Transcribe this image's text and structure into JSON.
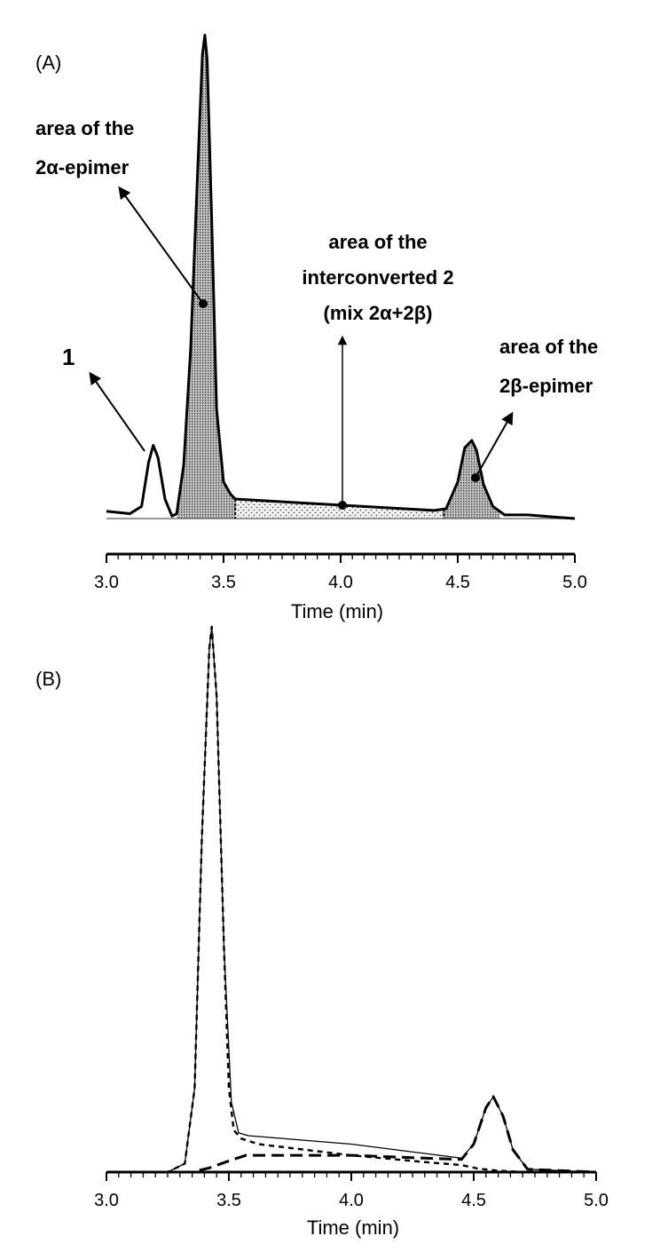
{
  "chart_data": [
    {
      "panel_label": "(A)",
      "type": "line",
      "xlabel": "Time (min)",
      "ylabel": "",
      "xlim": [
        3.0,
        5.0
      ],
      "xticks": [
        "3.0",
        "3.5",
        "4.0",
        "4.5",
        "5.0"
      ],
      "y_axis_shown": false,
      "grid": false,
      "series": [
        {
          "x": [
            3.0,
            3.05,
            3.1,
            3.15,
            3.18,
            3.2,
            3.22,
            3.25,
            3.28,
            3.3,
            3.33,
            3.36,
            3.39,
            3.41,
            3.42,
            3.43,
            3.45,
            3.47,
            3.5,
            3.53,
            3.55,
            3.8,
            4.0,
            4.2,
            4.4,
            4.45,
            4.5,
            4.53,
            4.56,
            4.58,
            4.61,
            4.65,
            4.7,
            4.8,
            5.0
          ],
          "y": [
            3,
            2.5,
            2,
            5,
            23,
            30,
            25,
            8,
            1,
            2,
            22,
            70,
            144,
            190,
            198,
            188,
            120,
            45,
            15,
            10,
            8,
            6.6,
            5.5,
            4.4,
            3.3,
            4,
            15,
            29,
            32,
            28,
            14,
            5,
            1.5,
            1.5,
            0
          ]
        }
      ],
      "shaded_regions": [
        {
          "x_start": 3.3,
          "x_end": 3.55,
          "fill": "dense-dots"
        },
        {
          "x_start": 3.55,
          "x_end": 4.44,
          "fill": "sparse-dots"
        },
        {
          "x_start": 4.44,
          "x_end": 4.68,
          "fill": "dense-dots"
        }
      ],
      "annotations": [
        {
          "lines": [
            "area of the",
            "2α-epimer"
          ],
          "x": 3.43,
          "y": 87
        },
        {
          "lines": [
            "area of the",
            "interconverted 2",
            "(mix 2α+2β)"
          ],
          "x": 4.03,
          "y": 4.8
        },
        {
          "lines": [
            "1"
          ],
          "x": 3.16,
          "y": 26
        },
        {
          "lines": [
            "area of the",
            "2β-epimer"
          ],
          "x": 4.58,
          "y": 16
        }
      ]
    },
    {
      "panel_label": "(B)",
      "type": "line",
      "xlabel": "Time (min)",
      "ylabel": "",
      "xlim": [
        3.0,
        5.0
      ],
      "xticks": [
        "3.0",
        "3.5",
        "4.0",
        "4.5",
        "5.0"
      ],
      "y_axis_shown": false,
      "grid": false,
      "series": [
        {
          "style": "solid-thin",
          "x": [
            3.0,
            3.25,
            3.32,
            3.36,
            3.39,
            3.42,
            3.43,
            3.45,
            3.48,
            3.51,
            3.54,
            3.58,
            4.0,
            4.45,
            4.5,
            4.55,
            4.58,
            4.62,
            4.66,
            4.72,
            5.0
          ],
          "y": [
            0,
            0,
            3,
            30,
            120,
            187,
            195,
            170,
            80,
            25,
            14,
            13,
            10,
            5,
            10,
            23,
            27,
            20,
            8,
            1,
            0
          ]
        },
        {
          "style": "short-dash",
          "x": [
            3.0,
            3.25,
            3.32,
            3.36,
            3.39,
            3.42,
            3.43,
            3.45,
            3.48,
            3.5,
            3.52,
            3.55,
            3.62,
            4.0,
            4.3,
            4.45,
            4.52,
            4.6,
            4.7,
            5.0
          ],
          "y": [
            0,
            0,
            3,
            30,
            120,
            187,
            195,
            170,
            80,
            30,
            15,
            12,
            10,
            6,
            3.6,
            2.5,
            1.2,
            0.5,
            0,
            0
          ]
        },
        {
          "style": "long-dash",
          "x": [
            3.0,
            3.35,
            3.42,
            3.5,
            3.57,
            4.0,
            4.3,
            4.45,
            4.5,
            4.55,
            4.58,
            4.62,
            4.66,
            4.72,
            5.0
          ],
          "y": [
            0,
            0,
            1.5,
            4,
            6,
            6,
            5,
            4.5,
            10,
            23,
            27,
            20,
            8,
            1,
            0
          ]
        }
      ]
    }
  ]
}
